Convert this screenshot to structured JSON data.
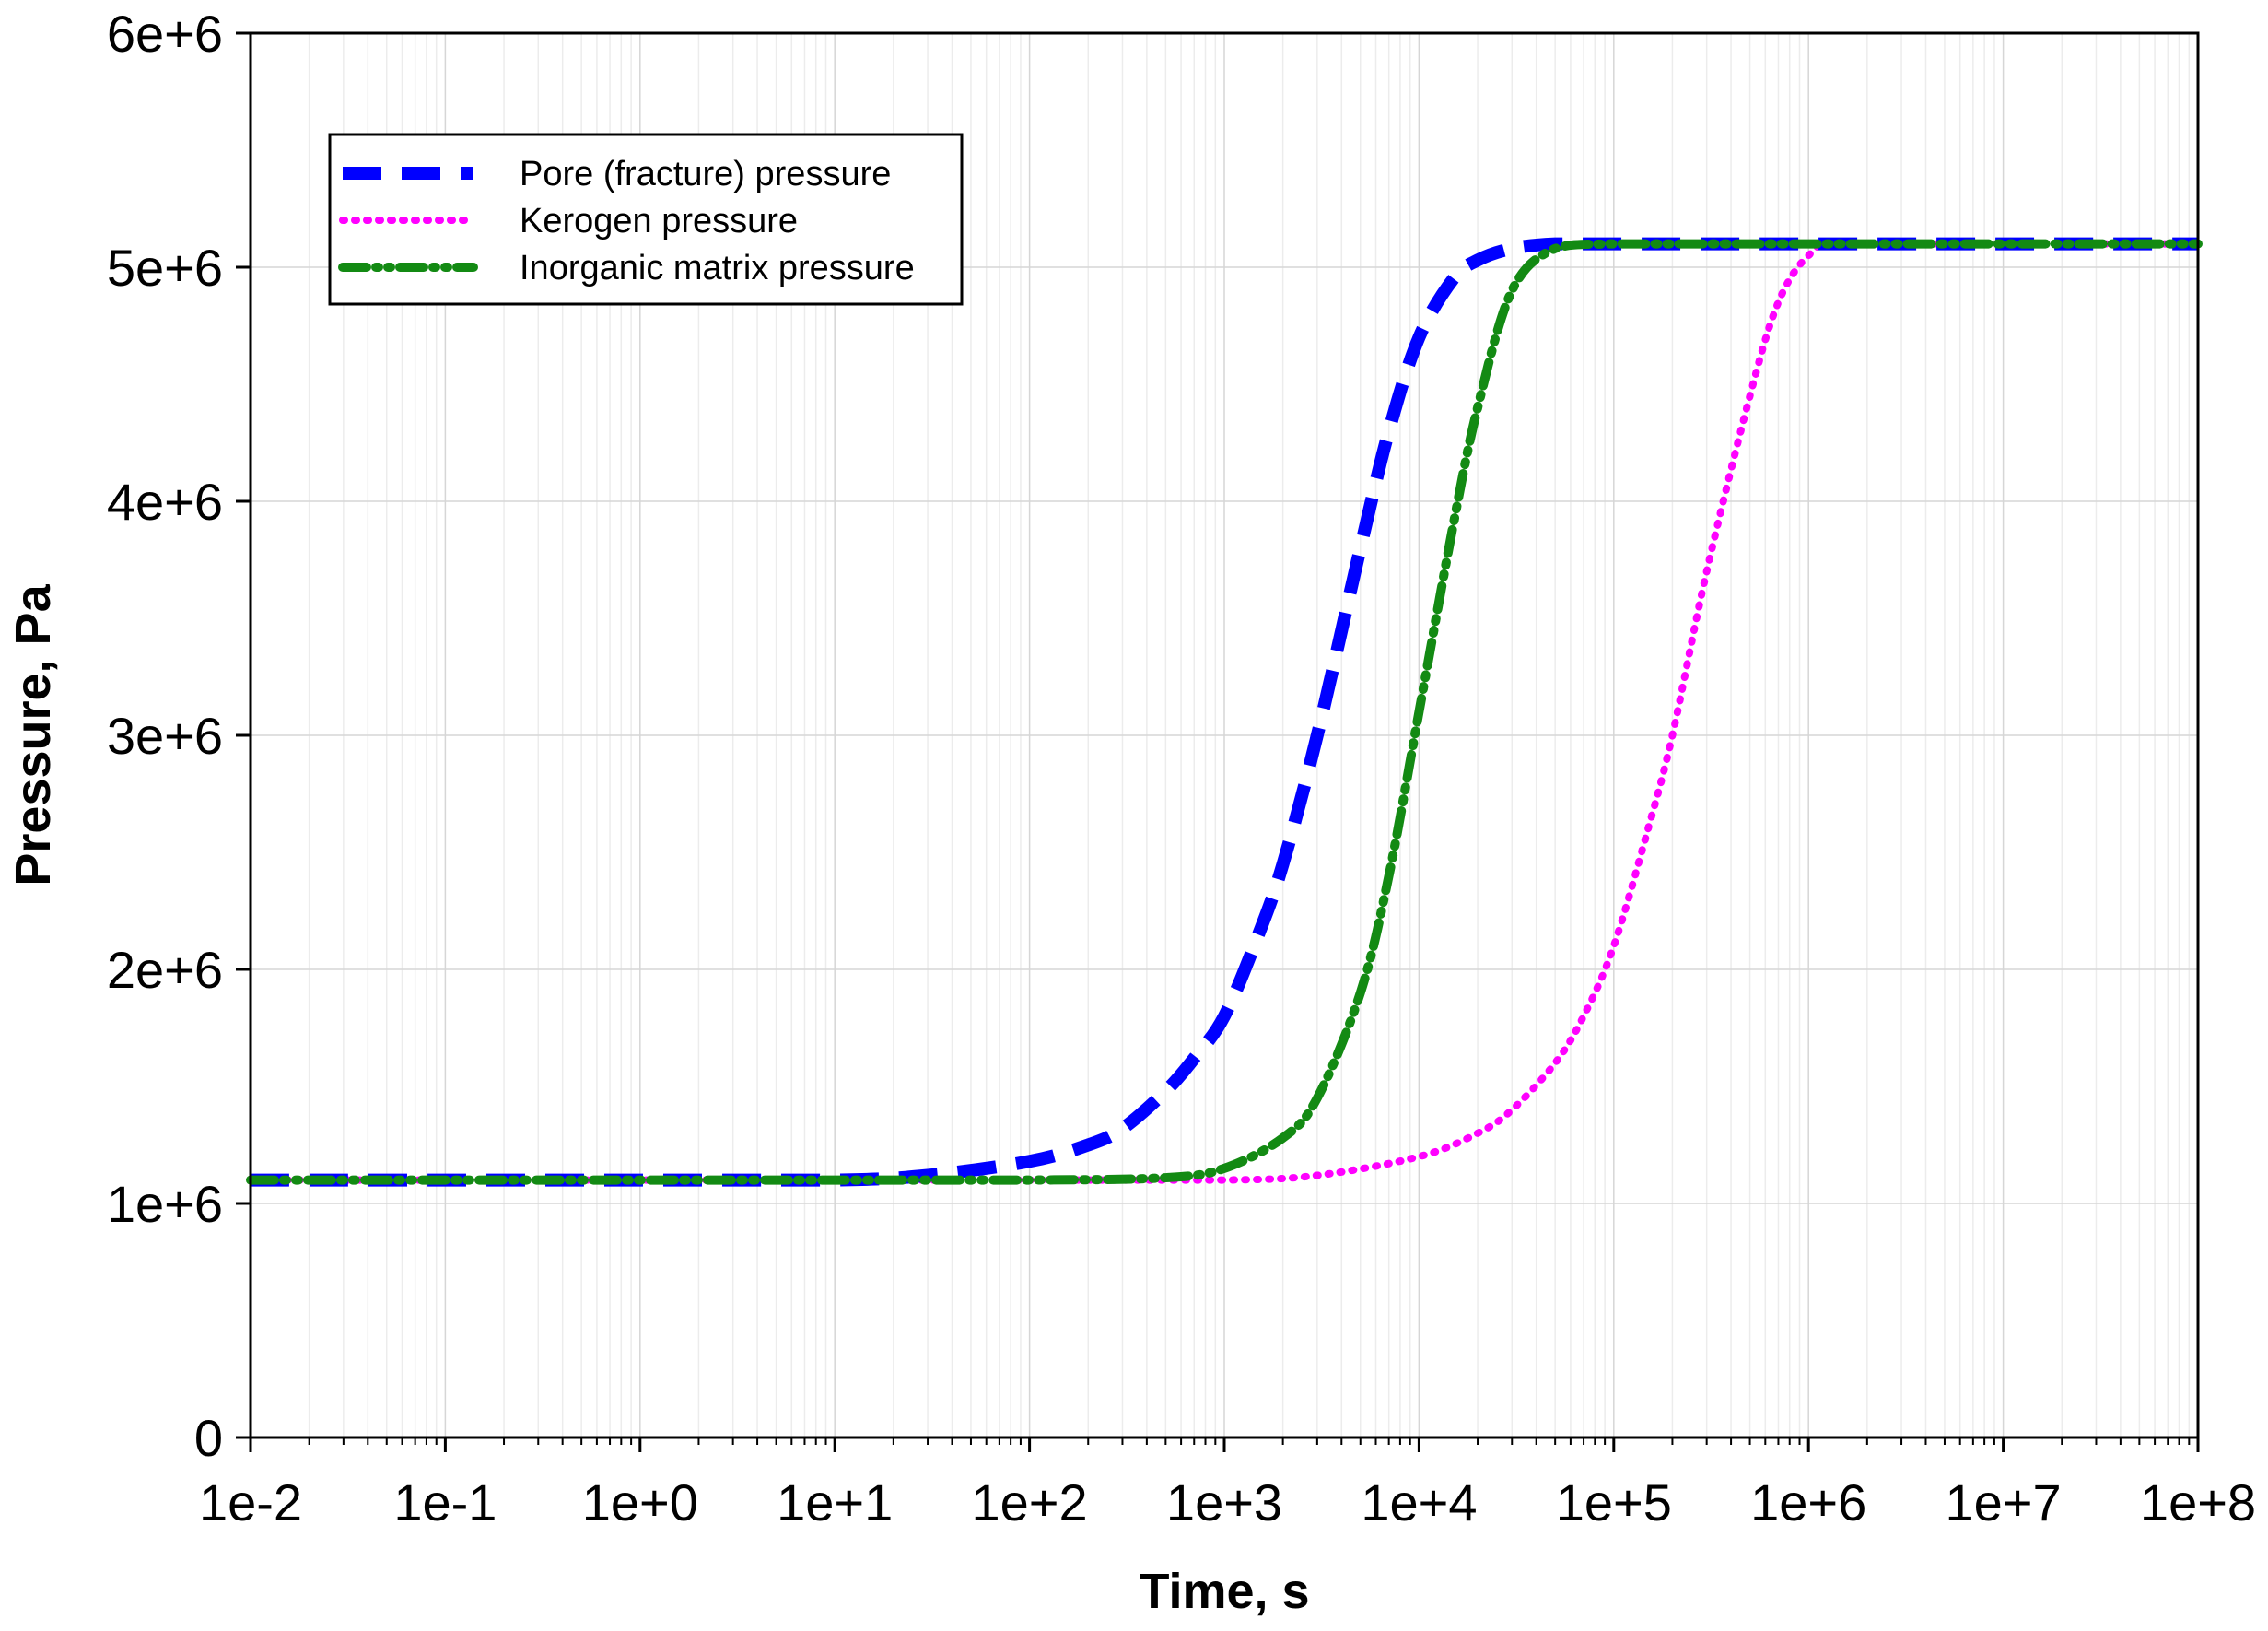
{
  "chart_data": {
    "type": "line",
    "title": "",
    "xlabel": "Time, s",
    "ylabel": "Pressure, Pa",
    "x_scale": "log",
    "xlim": [
      0.01,
      100000000
    ],
    "ylim": [
      0,
      6000000
    ],
    "x_tick_values": [
      0.01,
      0.1,
      1,
      10,
      100,
      1000,
      10000,
      100000,
      1000000,
      10000000,
      100000000
    ],
    "x_tick_labels": [
      "1e-2",
      "1e-1",
      "1e+0",
      "1e+1",
      "1e+2",
      "1e+3",
      "1e+4",
      "1e+5",
      "1e+6",
      "1e+7",
      "1e+8"
    ],
    "y_tick_values": [
      0,
      1000000,
      2000000,
      3000000,
      4000000,
      5000000,
      6000000
    ],
    "y_tick_labels": [
      "0",
      "1e+6",
      "2e+6",
      "3e+6",
      "4e+6",
      "5e+6",
      "6e+6"
    ],
    "grid": true,
    "legend_position": "top-left",
    "series": [
      {
        "name": "Pore (fracture) pressure",
        "color": "#0000ff",
        "style": "dashed",
        "x": [
          0.01,
          0.1,
          1,
          10,
          30,
          100,
          200,
          300,
          500,
          700,
          1000,
          1500,
          2000,
          3000,
          5000,
          7000,
          10000,
          15000,
          20000,
          30000,
          50000,
          100000,
          1000000,
          10000000,
          100000000
        ],
        "y": [
          1100000,
          1100000,
          1100000,
          1100000,
          1120000,
          1180000,
          1250000,
          1320000,
          1480000,
          1620000,
          1800000,
          2150000,
          2450000,
          3000000,
          3800000,
          4300000,
          4700000,
          4950000,
          5030000,
          5080000,
          5100000,
          5100000,
          5100000,
          5100000,
          5100000
        ]
      },
      {
        "name": "Kerogen pressure",
        "color": "#ff00ff",
        "style": "dotted",
        "x": [
          0.01,
          0.1,
          1,
          10,
          100,
          1000,
          3000,
          10000,
          20000,
          30000,
          50000,
          70000,
          100000,
          150000,
          200000,
          300000,
          500000,
          700000,
          1000000,
          1500000,
          10000000,
          100000000
        ],
        "y": [
          1100000,
          1100000,
          1100000,
          1100000,
          1100000,
          1100000,
          1120000,
          1200000,
          1300000,
          1400000,
          1600000,
          1800000,
          2100000,
          2600000,
          3000000,
          3700000,
          4450000,
          4850000,
          5050000,
          5100000,
          5100000,
          5100000
        ]
      },
      {
        "name": "Inorganic matrix pressure",
        "color": "#138a13",
        "style": "dash-dot-dot",
        "x": [
          0.01,
          0.1,
          1,
          10,
          100,
          500,
          1000,
          2000,
          3000,
          5000,
          7000,
          10000,
          15000,
          20000,
          30000,
          50000,
          100000,
          1000000,
          10000000,
          100000000
        ],
        "y": [
          1100000,
          1100000,
          1100000,
          1100000,
          1100000,
          1110000,
          1150000,
          1280000,
          1450000,
          1900000,
          2400000,
          3100000,
          3900000,
          4400000,
          4900000,
          5080000,
          5100000,
          5100000,
          5100000,
          5100000
        ]
      }
    ]
  }
}
